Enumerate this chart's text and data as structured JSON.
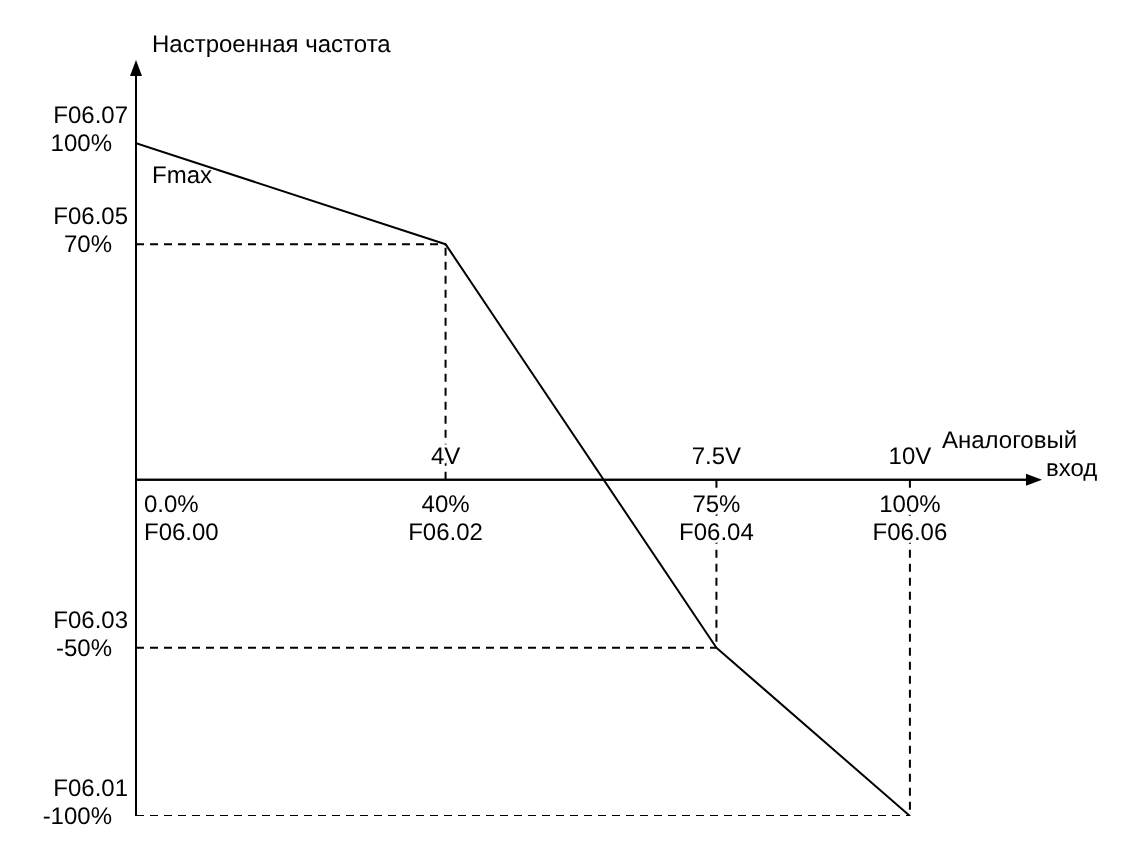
{
  "chart_data": {
    "type": "line",
    "ylabel": "Настроенная частота",
    "xlabel": "Аналоговый вход",
    "xlim": [
      0,
      115
    ],
    "ylim": [
      -100,
      120
    ],
    "x2lim": [
      0,
      11.5
    ],
    "xticks": [
      {
        "value": 0,
        "label": "0.0%"
      },
      {
        "value": 40,
        "label": "40%"
      },
      {
        "value": 75,
        "label": "75%"
      },
      {
        "value": 100,
        "label": "100%"
      }
    ],
    "x2ticks": [
      {
        "value": 4,
        "label": "4V"
      },
      {
        "value": 7.5,
        "label": "7.5V"
      },
      {
        "value": 10,
        "label": "10V"
      }
    ],
    "yticks": [
      {
        "value": 100,
        "label": "100%"
      },
      {
        "value": 70,
        "label": "70%"
      },
      {
        "value": -50,
        "label": "-50%"
      },
      {
        "value": -100,
        "label": "-100%"
      }
    ],
    "marker": "none",
    "annotations": [
      "Fmax",
      {
        "text": "F06.07",
        "x": 0,
        "y": 100
      },
      {
        "text": "F06.05",
        "x": 0,
        "y": 70
      },
      {
        "text": "F06.03",
        "x": 0,
        "y": -50
      },
      {
        "text": "F06.01",
        "x": 0,
        "y": -100
      },
      "F06.00",
      {
        "text": "F06.02",
        "x": 40,
        "y": 0
      },
      {
        "text": "F06.04",
        "x": 75,
        "y": 0
      },
      {
        "text": "F06.06",
        "x": 100,
        "y": 0
      }
    ],
    "series": [
      {
        "color": "#000000",
        "line_style": "solid",
        "x": [
          0,
          40,
          75,
          100
        ],
        "values": [
          100,
          70,
          -50,
          -100
        ]
      },
      {
        "color": "#000000",
        "line_style": "dashed",
        "x": [
          0,
          40
        ],
        "values": [
          70,
          70
        ]
      },
      {
        "color": "#000000",
        "line_style": "dashed",
        "x": [
          40,
          40
        ],
        "values": [
          0,
          70
        ]
      },
      {
        "color": "#000000",
        "line_style": "dashed",
        "x": [
          0,
          75
        ],
        "values": [
          -50,
          -50
        ]
      },
      {
        "color": "#000000",
        "line_style": "dashed",
        "x": [
          75,
          75
        ],
        "values": [
          0,
          -50
        ]
      },
      {
        "color": "#000000",
        "line_style": "dashed",
        "x": [
          0,
          100
        ],
        "values": [
          -100,
          -100
        ]
      },
      {
        "color": "#000000",
        "line_style": "dashed",
        "x": [
          100,
          100
        ],
        "values": [
          0,
          -100
        ]
      }
    ]
  }
}
